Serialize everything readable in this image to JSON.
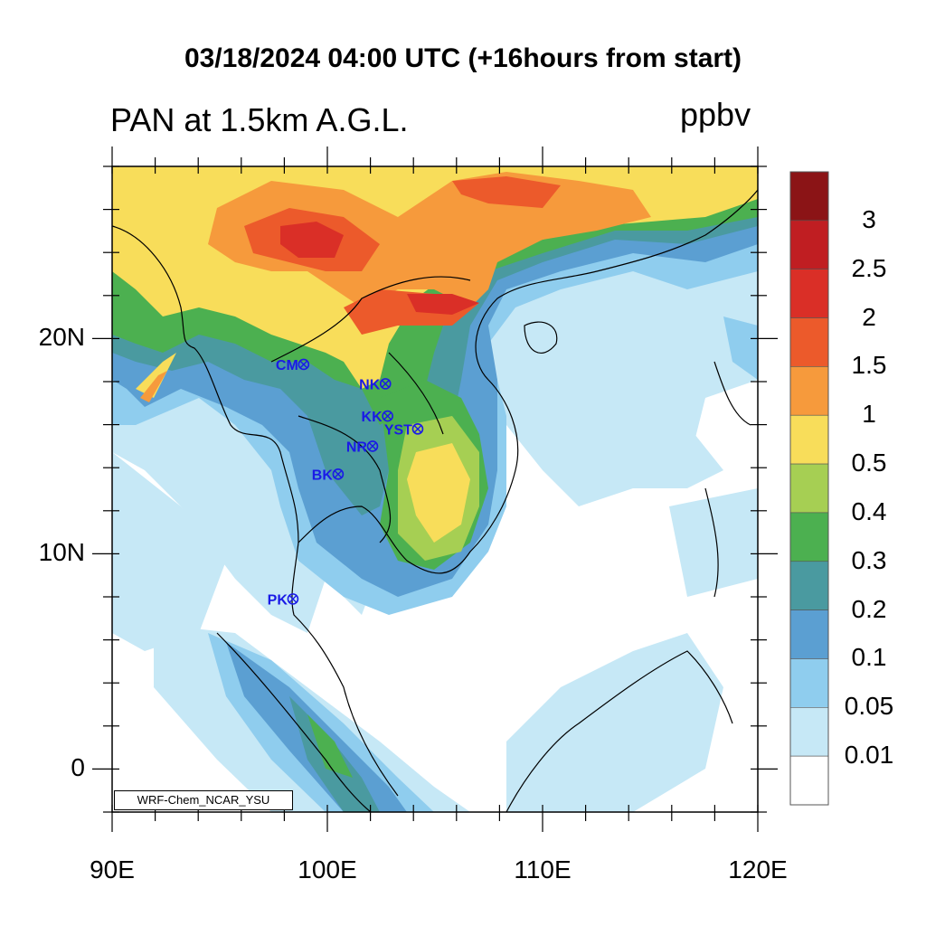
{
  "title": "03/18/2024 04:00 UTC (+16hours from start)",
  "left_title": "PAN at 1.5km A.G.L.",
  "right_title": "ppbv",
  "credit": "WRF-Chem_NCAR_YSU",
  "map": {
    "lon_range": [
      90,
      120
    ],
    "lat_range": [
      -2,
      28
    ],
    "lon_ticks": [
      {
        "value": 90,
        "label": "90E"
      },
      {
        "value": 100,
        "label": "100E"
      },
      {
        "value": 110,
        "label": "110E"
      },
      {
        "value": 120,
        "label": "120E"
      }
    ],
    "lat_ticks": [
      {
        "value": 20,
        "label": "20N"
      },
      {
        "value": 10,
        "label": "10N"
      },
      {
        "value": 0,
        "label": "0"
      }
    ]
  },
  "colorbar": {
    "levels": [
      "3",
      "2.5",
      "2",
      "1.5",
      "1",
      "0.5",
      "0.4",
      "0.3",
      "0.2",
      "0.1",
      "0.05",
      "0.01"
    ],
    "colors": [
      "#ffffff",
      "#c6e8f6",
      "#8fcdee",
      "#5b9fd2",
      "#4a9aa0",
      "#4cb050",
      "#a6cf53",
      "#f8dd5a",
      "#f69a3c",
      "#ec5a2b",
      "#da2f27",
      "#c01e22",
      "#8b1416"
    ]
  },
  "stations": [
    {
      "name": "CM",
      "lon": 98.9,
      "lat": 18.8
    },
    {
      "name": "NK",
      "lon": 102.7,
      "lat": 17.9
    },
    {
      "name": "KK",
      "lon": 102.8,
      "lat": 16.4
    },
    {
      "name": "YST",
      "lon": 104.2,
      "lat": 15.8
    },
    {
      "name": "NR",
      "lon": 102.1,
      "lat": 15.0
    },
    {
      "name": "BK",
      "lon": 100.5,
      "lat": 13.7
    },
    {
      "name": "PK",
      "lon": 98.4,
      "lat": 7.9
    }
  ]
}
